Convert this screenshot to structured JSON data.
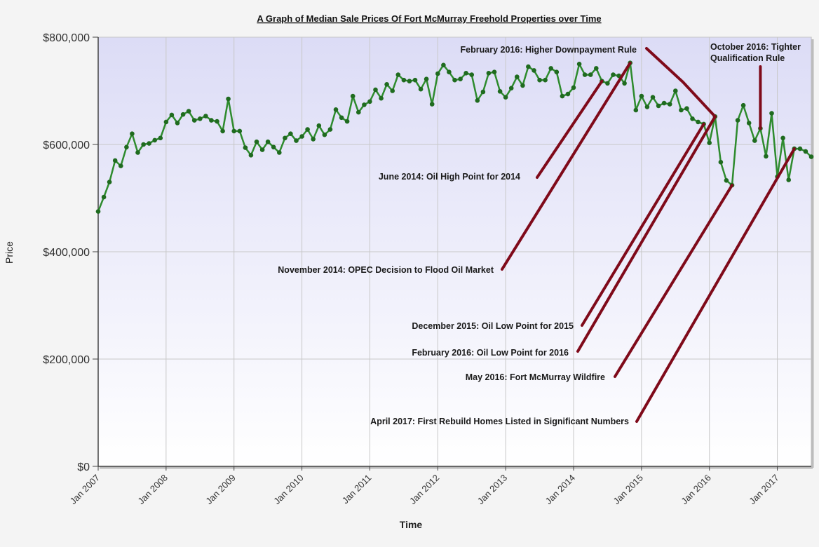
{
  "chart_data": {
    "type": "line",
    "title": "A Graph of Median Sale Prices Of Fort McMurray Freehold Properties over Time",
    "xlabel": "Time",
    "ylabel": "Price",
    "ylim": [
      0,
      800000
    ],
    "yticks": [
      {
        "value": 0,
        "label": "$0"
      },
      {
        "value": 200000,
        "label": "$200,000"
      },
      {
        "value": 400000,
        "label": "$400,000"
      },
      {
        "value": 600000,
        "label": "$600,000"
      },
      {
        "value": 800000,
        "label": "$800,000"
      }
    ],
    "xticks": [
      "Jan 2007",
      "Jan 2008",
      "Jan 2009",
      "Jan 2010",
      "Jan 2011",
      "Jan 2012",
      "Jan 2013",
      "Jan 2014",
      "Jan 2015",
      "Jan 2016",
      "Jan 2017"
    ],
    "x_start": "2007-01",
    "grid": true,
    "legend": "none",
    "colors": {
      "line": "#2e8b2e",
      "marker": "#1f6b1f",
      "annotation": "#7f0a1a",
      "plot_bg_top": "#dcdcf6",
      "plot_bg_bottom": "#ffffff"
    },
    "series": [
      {
        "values": [
          475000,
          502000,
          530000,
          570000,
          560000,
          595000,
          620000,
          585000,
          600000,
          602000,
          608000,
          612000,
          642000,
          655000,
          640000,
          656000,
          662000,
          645000,
          648000,
          653000,
          645000,
          643000,
          625000,
          685000,
          625000,
          625000,
          594000,
          580000,
          605000,
          590000,
          605000,
          595000,
          585000,
          612000,
          620000,
          607000,
          615000,
          628000,
          610000,
          635000,
          618000,
          628000,
          665000,
          650000,
          643000,
          690000,
          660000,
          674000,
          680000,
          702000,
          686000,
          712000,
          700000,
          730000,
          720000,
          718000,
          720000,
          703000,
          722000,
          675000,
          732000,
          748000,
          735000,
          720000,
          722000,
          733000,
          730000,
          682000,
          698000,
          733000,
          735000,
          699000,
          688000,
          705000,
          726000,
          710000,
          745000,
          738000,
          720000,
          720000,
          742000,
          735000,
          690000,
          694000,
          706000,
          750000,
          730000,
          730000,
          742000,
          718000,
          714000,
          730000,
          728000,
          714000,
          752000,
          664000,
          690000,
          670000,
          688000,
          672000,
          677000,
          675000,
          700000,
          664000,
          667000,
          648000,
          642000,
          638000,
          603000,
          652000,
          567000,
          533000,
          524000,
          645000,
          673000,
          640000,
          607000,
          630000,
          578000,
          658000,
          540000,
          612000,
          534000,
          592000,
          592000,
          587000,
          577000
        ]
      }
    ],
    "annotations": [
      {
        "text": "February 2016: Higher Downpayment Rule",
        "point": "2016-02"
      },
      {
        "text": "October 2016: Tighter",
        "text2": "Qualification Rule",
        "point": "2016-10"
      },
      {
        "text": "June 2014: Oil High Point for 2014",
        "point": "2014-06"
      },
      {
        "text": "November 2014: OPEC Decision to Flood Oil Market",
        "point": "2014-11"
      },
      {
        "text": "December 2015: Oil Low Point for 2015",
        "point": "2015-12"
      },
      {
        "text": "February 2016: Oil Low Point for 2016",
        "point": "2016-02"
      },
      {
        "text": "May 2016: Fort McMurray Wildfire",
        "point": "2016-05"
      },
      {
        "text": "April 2017: First Rebuild Homes Listed in Significant Numbers",
        "point": "2017-04"
      }
    ]
  }
}
